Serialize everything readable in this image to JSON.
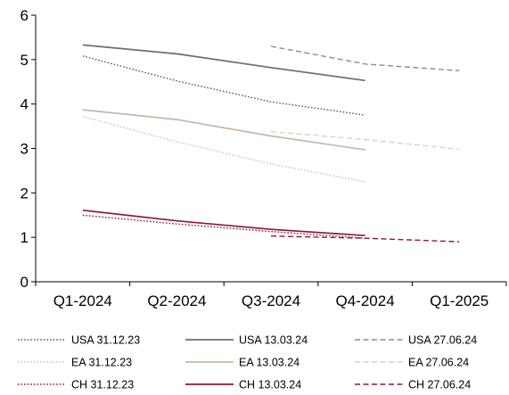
{
  "chart_data": {
    "type": "line",
    "categories": [
      "Q1-2024",
      "Q2-2024",
      "Q3-2024",
      "Q4-2024",
      "Q1-2025"
    ],
    "ylim": [
      0,
      6
    ],
    "yticks": [
      0,
      1,
      2,
      3,
      4,
      5,
      6
    ],
    "title": "",
    "xlabel": "",
    "ylabel": "",
    "grid": false,
    "legend_position": "bottom",
    "series": [
      {
        "name": "USA 31.12.23",
        "values": [
          5.08,
          4.52,
          4.05,
          3.75,
          null
        ],
        "color": "#595959",
        "style": "dotted"
      },
      {
        "name": "USA 13.03.24",
        "values": [
          5.33,
          5.13,
          4.82,
          4.53,
          null
        ],
        "color": "#6e6e6e",
        "style": "solid"
      },
      {
        "name": "USA 27.06.24",
        "values": [
          null,
          null,
          5.3,
          4.9,
          4.75
        ],
        "color": "#8c8c8c",
        "style": "dashed"
      },
      {
        "name": "EA 31.12.23",
        "values": [
          3.72,
          3.15,
          2.65,
          2.25,
          null
        ],
        "color": "#cfc3b8",
        "style": "dotted"
      },
      {
        "name": "EA 13.03.24",
        "values": [
          3.87,
          3.65,
          3.28,
          2.97,
          null
        ],
        "color": "#cbb4a2",
        "style": "solid"
      },
      {
        "name": "EA 27.06.24",
        "values": [
          null,
          null,
          3.38,
          3.2,
          2.98
        ],
        "color": "#dcd3c6",
        "style": "dashed"
      },
      {
        "name": "CH 31.12.23",
        "values": [
          1.5,
          1.3,
          1.13,
          0.98,
          null
        ],
        "color": "#8b1a3c",
        "style": "dotted"
      },
      {
        "name": "CH 13.03.24",
        "values": [
          1.61,
          1.37,
          1.18,
          1.04,
          null
        ],
        "color": "#8b1a3c",
        "style": "solid"
      },
      {
        "name": "CH 27.06.24",
        "values": [
          null,
          null,
          1.03,
          0.98,
          0.9
        ],
        "color": "#8b1a3c",
        "style": "dashed"
      }
    ]
  }
}
